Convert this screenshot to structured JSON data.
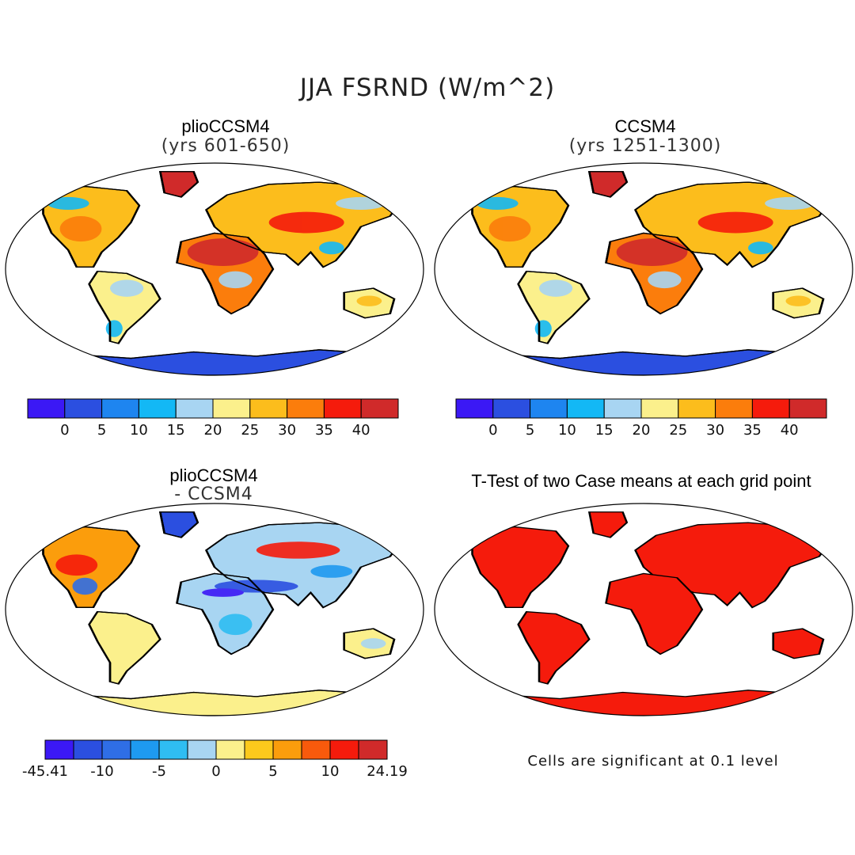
{
  "figure": {
    "title": "JJA FSRND (W/m^2)"
  },
  "panels": {
    "p1": {
      "title": "plioCCSM4",
      "subtitle": "(yrs 601-650)"
    },
    "p2": {
      "title": "CCSM4",
      "subtitle": "(yrs 1251-1300)"
    },
    "p3": {
      "title": "plioCCSM4",
      "subtitle": "- CCSM4"
    },
    "p4": {
      "title": "T-Test of two Case means at each grid point",
      "note": "Cells are significant at 0.1 level"
    }
  },
  "colorbars": {
    "abs": {
      "colors": [
        "#3b18f5",
        "#2b4fe0",
        "#1e85f0",
        "#13b8f5",
        "#a8d5f2",
        "#fbf08c",
        "#fcbd1c",
        "#fb7d0c",
        "#f51b0c",
        "#d02a2a"
      ],
      "labels": [
        "0",
        "5",
        "10",
        "15",
        "20",
        "25",
        "30",
        "35",
        "40"
      ]
    },
    "diff": {
      "colors": [
        "#3b18f5",
        "#2b4fe0",
        "#2f6ee6",
        "#1e9af0",
        "#2fbdf2",
        "#a8d5f2",
        "#fbf08c",
        "#fcc91c",
        "#fb9d0c",
        "#f85a0c",
        "#f51b0c",
        "#d02a2a"
      ],
      "labels": [
        "-45.41",
        "-10",
        "-5",
        "0",
        "5",
        "10",
        "24.19"
      ]
    }
  },
  "colors": {
    "antarctica_abs": "#2b4fe0",
    "antarctica_diff": "#fbf08c",
    "significant": "#f51b0c",
    "coast": "#000000"
  }
}
